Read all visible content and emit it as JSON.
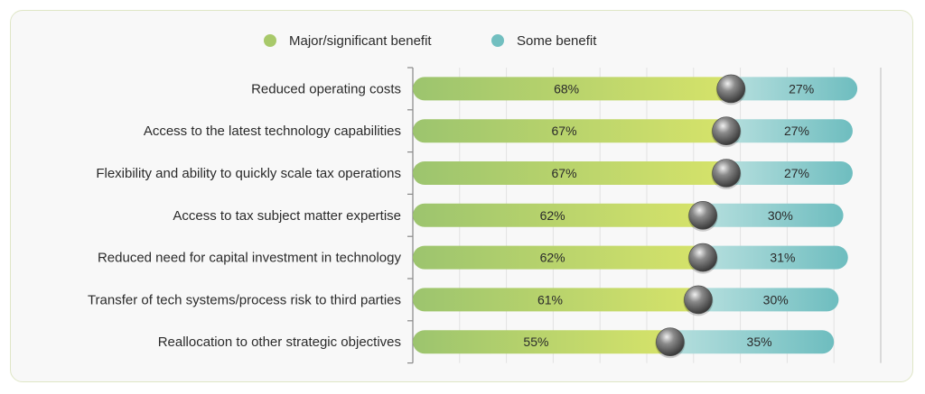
{
  "chart_data": {
    "type": "bar",
    "stacked": true,
    "orientation": "horizontal",
    "categories": [
      "Reduced operating costs",
      "Access to the latest technology capabilities",
      "Flexibility and ability to quickly scale tax operations",
      "Access to tax subject matter expertise",
      "Reduced need for capital investment in technology",
      "Transfer of tech systems/process risk to third parties",
      "Reallocation to other strategic objectives"
    ],
    "series": [
      {
        "name": "Major/significant benefit",
        "values": [
          68,
          67,
          67,
          62,
          62,
          61,
          55
        ],
        "labels": [
          "68%",
          "67%",
          "67%",
          "62%",
          "62%",
          "61%",
          "55%"
        ],
        "color": "#a8c96a"
      },
      {
        "name": "Some benefit",
        "values": [
          27,
          27,
          27,
          30,
          31,
          30,
          35
        ],
        "labels": [
          "27%",
          "27%",
          "27%",
          "30%",
          "31%",
          "30%",
          "35%"
        ],
        "color": "#72bfc0"
      }
    ],
    "legend": "top-center",
    "grid": true,
    "xlim": [
      0,
      100
    ]
  }
}
